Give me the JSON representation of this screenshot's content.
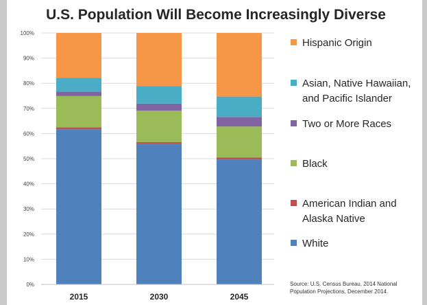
{
  "chart_data": {
    "type": "bar",
    "stacked": true,
    "title": "U.S. Population Will Become Increasingly Diverse",
    "categories": [
      "2015",
      "2030",
      "2045"
    ],
    "ylim": [
      0,
      100
    ],
    "y_ticks": [
      "0%",
      "10%",
      "20%",
      "30%",
      "40%",
      "50%",
      "60%",
      "70%",
      "80%",
      "90%",
      "100%"
    ],
    "series": [
      {
        "name": "White",
        "color": "#4f81bd",
        "values": [
          61.7,
          55.8,
          49.7
        ]
      },
      {
        "name": "American Indian and\nAlaska Native",
        "color": "#c0504d",
        "values": [
          0.8,
          0.8,
          0.8
        ]
      },
      {
        "name": "Black",
        "color": "#9bbb59",
        "values": [
          12.4,
          12.5,
          12.3
        ]
      },
      {
        "name": "Two or More Races",
        "color": "#8064a2",
        "values": [
          1.8,
          2.8,
          3.8
        ]
      },
      {
        "name": "Asian, Native Hawaiian,\nand Pacific Islander",
        "color": "#4bacc6",
        "values": [
          5.5,
          7.0,
          8.1
        ]
      },
      {
        "name": "Hispanic Origin",
        "color": "#f79646",
        "values": [
          17.8,
          21.1,
          25.3
        ]
      }
    ],
    "legend_position": "right",
    "source": "Source: U.S. Census Bureau, 2014 National\nPopulation Projections, December 2014."
  }
}
